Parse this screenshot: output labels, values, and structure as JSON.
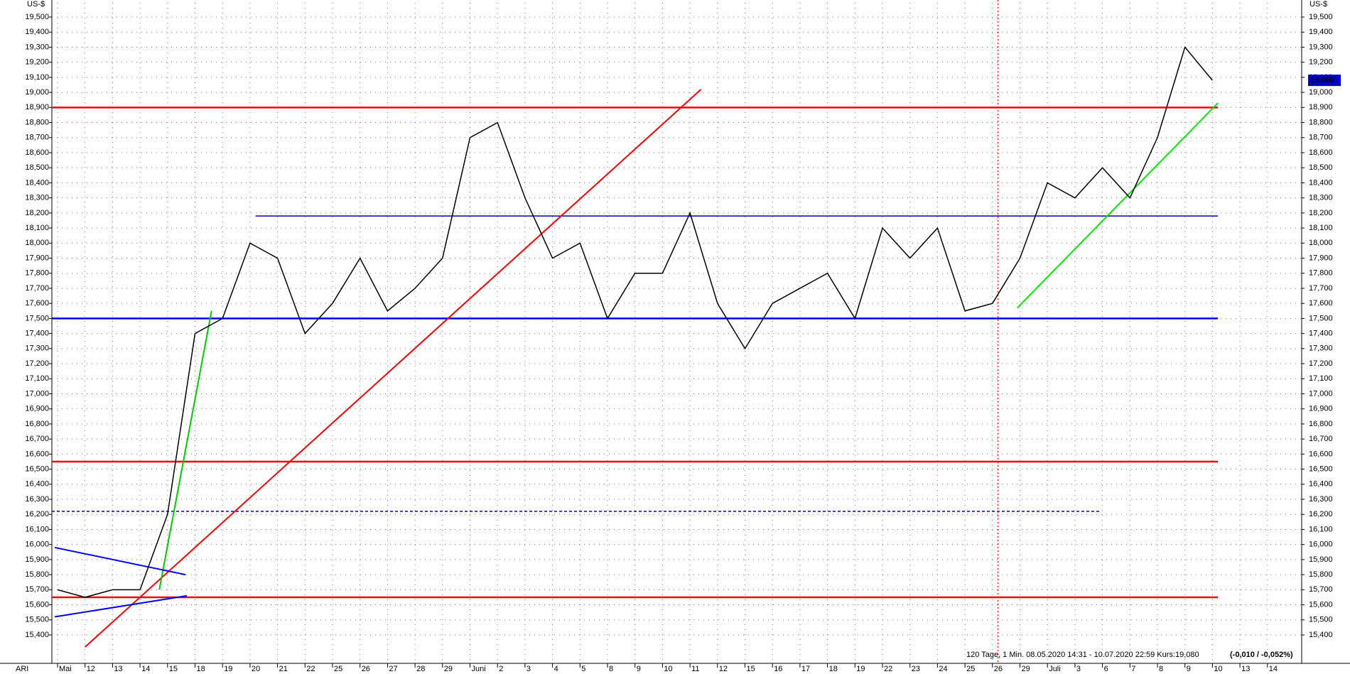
{
  "chart_data": {
    "type": "line",
    "unit_label": "US-$",
    "corner_label": "ARI",
    "footer": "120 Tage, 1 Min. 08.05.2020 14:31 - 10.07.2020 22:59 Kurs:19,080",
    "footer_change": "(-0,010 / -0,052%)",
    "last_value": {
      "value": 19080,
      "label": "19,080"
    },
    "categories": [
      "Mai",
      "12",
      "13",
      "14",
      "15",
      "18",
      "19",
      "20",
      "21",
      "22",
      "25",
      "26",
      "27",
      "28",
      "29",
      "Juni",
      "2",
      "3",
      "4",
      "5",
      "8",
      "9",
      "10",
      "11",
      "12",
      "15",
      "16",
      "17",
      "18",
      "19",
      "22",
      "23",
      "24",
      "25",
      "26",
      "29",
      "Juli",
      "3",
      "6",
      "7",
      "8",
      "9",
      "10",
      "13",
      "14"
    ],
    "series": [
      {
        "name": "Kurs",
        "color": "#000000",
        "values": [
          15700,
          15650,
          15700,
          15700,
          16200,
          17400,
          17500,
          18000,
          17900,
          17400,
          17600,
          17900,
          17550,
          17700,
          17900,
          18700,
          18800,
          18300,
          17900,
          18000,
          17500,
          17800,
          17800,
          18200,
          17600,
          17300,
          17600,
          17700,
          17800,
          17500,
          18100,
          17900,
          18100,
          17550,
          17600,
          17900,
          18400,
          18300,
          18500,
          18300,
          18700,
          19300,
          19080,
          null,
          null
        ]
      }
    ],
    "hlines": [
      {
        "value": 18900,
        "color": "#ff0000",
        "style": "solid"
      },
      {
        "value": 18180,
        "color": "#0000cc",
        "style": "thin"
      },
      {
        "value": 17500,
        "color": "#0000ff",
        "style": "solid"
      },
      {
        "value": 16550,
        "color": "#ff0000",
        "style": "solid"
      },
      {
        "value": 16220,
        "color": "#0000cc",
        "style": "dashed"
      },
      {
        "value": 15650,
        "color": "#ff0000",
        "style": "solid"
      }
    ],
    "trendlines": [
      {
        "color": "#ff0000",
        "x": [
          1.0,
          23.4
        ],
        "y": [
          15320,
          19020
        ]
      },
      {
        "color": "#00cc00",
        "x": [
          3.7,
          5.6
        ],
        "y": [
          15700,
          17550
        ]
      },
      {
        "color": "#00ee00",
        "x": [
          34.9,
          42.2
        ],
        "y": [
          17570,
          18930
        ]
      },
      {
        "color": "#0000ff",
        "x": [
          -0.1,
          4.65
        ],
        "y": [
          15980,
          15800
        ]
      },
      {
        "color": "#0000ff",
        "x": [
          -0.1,
          4.7
        ],
        "y": [
          15520,
          15660
        ]
      }
    ],
    "ylim": [
      15300,
      19600
    ],
    "yticks": [
      {
        "value": 15400,
        "label": "15,400"
      },
      {
        "value": 15500,
        "label": "15,500"
      },
      {
        "value": 15600,
        "label": "15,600"
      },
      {
        "value": 15700,
        "label": "15,700"
      },
      {
        "value": 15800,
        "label": "15,800"
      },
      {
        "value": 15900,
        "label": "15,900"
      },
      {
        "value": 16000,
        "label": "16,000"
      },
      {
        "value": 16100,
        "label": "16,100"
      },
      {
        "value": 16200,
        "label": "16,200"
      },
      {
        "value": 16300,
        "label": "16,300"
      },
      {
        "value": 16400,
        "label": "16,400"
      },
      {
        "value": 16500,
        "label": "16,500"
      },
      {
        "value": 16600,
        "label": "16,600"
      },
      {
        "value": 16700,
        "label": "16,700"
      },
      {
        "value": 16800,
        "label": "16,800"
      },
      {
        "value": 16900,
        "label": "16,900"
      },
      {
        "value": 17000,
        "label": "17,000"
      },
      {
        "value": 17100,
        "label": "17,100"
      },
      {
        "value": 17200,
        "label": "17,200"
      },
      {
        "value": 17300,
        "label": "17,300"
      },
      {
        "value": 17400,
        "label": "17,400"
      },
      {
        "value": 17500,
        "label": "17,500"
      },
      {
        "value": 17600,
        "label": "17,600"
      },
      {
        "value": 17700,
        "label": "17,700"
      },
      {
        "value": 17800,
        "label": "17,800"
      },
      {
        "value": 17900,
        "label": "17,900"
      },
      {
        "value": 18000,
        "label": "18,000"
      },
      {
        "value": 18100,
        "label": "18,100"
      },
      {
        "value": 18200,
        "label": "18,200"
      },
      {
        "value": 18300,
        "label": "18,300"
      },
      {
        "value": 18400,
        "label": "18,400"
      },
      {
        "value": 18500,
        "label": "18,500"
      },
      {
        "value": 18600,
        "label": "18,600"
      },
      {
        "value": 18700,
        "label": "18,700"
      },
      {
        "value": 18800,
        "label": "18,800"
      },
      {
        "value": 18900,
        "label": "18,900"
      },
      {
        "value": 19000,
        "label": "19,000"
      },
      {
        "value": 19100,
        "label": "19,100"
      },
      {
        "value": 19200,
        "label": "19,200"
      },
      {
        "value": 19300,
        "label": "19,300"
      },
      {
        "value": 19400,
        "label": "19,400"
      },
      {
        "value": 19500,
        "label": "19,500"
      }
    ],
    "grid": true
  }
}
